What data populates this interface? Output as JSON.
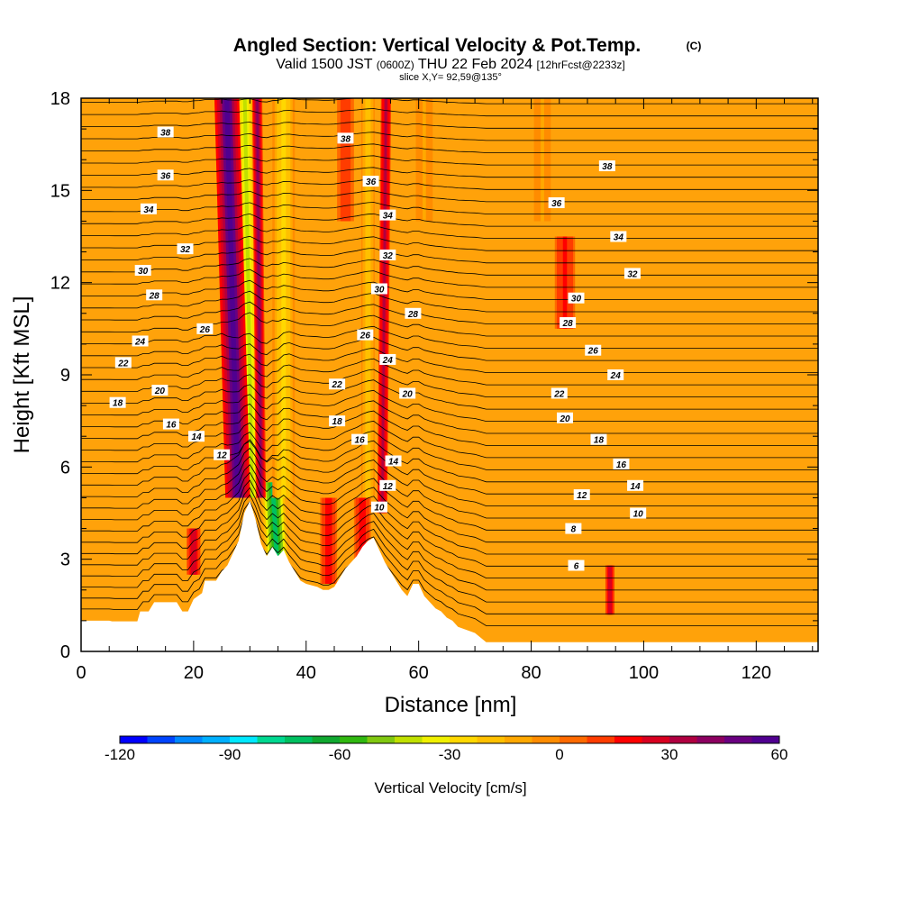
{
  "figure": {
    "title": "Angled Section: Vertical Velocity & Pot.Temp.",
    "title_tag": "(C)",
    "subtitle_a": "Valid 1500 JST",
    "subtitle_b": "(0600Z)",
    "subtitle_c": "THU 22 Feb 2024",
    "subtitle_d": "[12hrFcst@2233z]",
    "slice": "slice X,Y= 92,59@135°"
  },
  "chart_data": {
    "type": "contour-cross-section",
    "xlabel": "Distance [nm]",
    "ylabel": "Height [Kft MSL]",
    "xlim": [
      0,
      131
    ],
    "ylim": [
      0,
      18
    ],
    "x_ticks": [
      0,
      20,
      40,
      60,
      80,
      100,
      120
    ],
    "y_ticks": [
      0,
      3,
      6,
      9,
      12,
      15,
      18
    ],
    "colorbar": {
      "label": "Vertical Velocity [cm/s]",
      "ticks": [
        -120,
        -90,
        -60,
        -30,
        0,
        30,
        60
      ],
      "range": [
        -120,
        60
      ],
      "colors": [
        "#0000ff",
        "#0044ff",
        "#0088ff",
        "#00b0ff",
        "#00e8ff",
        "#00d890",
        "#00c060",
        "#10a830",
        "#30b810",
        "#80c810",
        "#c0e000",
        "#f0f000",
        "#ffd800",
        "#ffc000",
        "#ffa800",
        "#ff8c00",
        "#ff6a00",
        "#ff3c00",
        "#ff0000",
        "#d80020",
        "#b00040",
        "#8c0060",
        "#6a0080",
        "#500090"
      ]
    },
    "terrain": [
      [
        0,
        1.0
      ],
      [
        5,
        1.0
      ],
      [
        5,
        1.0
      ],
      [
        5.5,
        0.98
      ],
      [
        5.5,
        0.98
      ],
      [
        10,
        0.98
      ],
      [
        10,
        0.98
      ],
      [
        10.5,
        1.3
      ],
      [
        12,
        1.3
      ],
      [
        13,
        1.6
      ],
      [
        17,
        1.6
      ],
      [
        18,
        1.3
      ],
      [
        19,
        1.3
      ],
      [
        20,
        1.7
      ],
      [
        21.5,
        1.9
      ],
      [
        22,
        2.3
      ],
      [
        24,
        2.3
      ],
      [
        25,
        2.6
      ],
      [
        26,
        2.8
      ],
      [
        27,
        3.2
      ],
      [
        28,
        3.6
      ],
      [
        29,
        4.5
      ],
      [
        30,
        4.9
      ],
      [
        31,
        4.3
      ],
      [
        32,
        3.5
      ],
      [
        33,
        3.1
      ],
      [
        34,
        3.4
      ],
      [
        35,
        3.1
      ],
      [
        36,
        3.3
      ],
      [
        37,
        2.9
      ],
      [
        38,
        2.6
      ],
      [
        39,
        2.3
      ],
      [
        40,
        2.2
      ],
      [
        42,
        2.1
      ],
      [
        43,
        2.0
      ],
      [
        44,
        2.0
      ],
      [
        45,
        2.1
      ],
      [
        46,
        2.4
      ],
      [
        47,
        2.7
      ],
      [
        48,
        2.9
      ],
      [
        49,
        3.1
      ],
      [
        50,
        3.4
      ],
      [
        51,
        3.6
      ],
      [
        52,
        3.7
      ],
      [
        53,
        3.3
      ],
      [
        54,
        2.9
      ],
      [
        55,
        2.6
      ],
      [
        56,
        2.3
      ],
      [
        57,
        2.0
      ],
      [
        58,
        1.8
      ],
      [
        59,
        2.2
      ],
      [
        60,
        2.2
      ],
      [
        61,
        1.8
      ],
      [
        62,
        1.6
      ],
      [
        63,
        1.4
      ],
      [
        64,
        1.3
      ],
      [
        65,
        1.1
      ],
      [
        66,
        1.0
      ],
      [
        67,
        0.8
      ],
      [
        70,
        0.6
      ],
      [
        72,
        0.3
      ],
      [
        131,
        0.3
      ]
    ],
    "updrafts": [
      {
        "x": 28,
        "z0": 5.0,
        "z1": 18.0,
        "value": 60,
        "width": 2.2,
        "tilt": -0.15
      },
      {
        "x": 32,
        "z0": 5.0,
        "z1": 18.0,
        "value": 40,
        "width": 0.9,
        "tilt": -0.05
      },
      {
        "x": 53.5,
        "z0": 4.5,
        "z1": 18.0,
        "value": 35,
        "width": 0.9,
        "tilt": 0.05
      },
      {
        "x": 20,
        "z0": 2.5,
        "z1": 4.0,
        "value": 30,
        "width": 1.2,
        "tilt": 0
      },
      {
        "x": 94,
        "z0": 1.2,
        "z1": 2.8,
        "value": 30,
        "width": 0.8,
        "tilt": 0
      },
      {
        "x": 86,
        "z0": 10.5,
        "z1": 13.5,
        "value": 18,
        "width": 1.8,
        "tilt": 0
      },
      {
        "x": 47,
        "z0": 14.0,
        "z1": 18.0,
        "value": 15,
        "width": 1.5,
        "tilt": 0
      },
      {
        "x": 44,
        "z0": 2.2,
        "z1": 5.0,
        "value": 20,
        "width": 1.5,
        "tilt": 0
      },
      {
        "x": 50,
        "z0": 2.5,
        "z1": 5.0,
        "value": 20,
        "width": 1.5,
        "tilt": 0
      }
    ],
    "downdrafts": [
      {
        "x": 30.5,
        "z0": 5.0,
        "z1": 18.0,
        "value": -40,
        "width": 1.6,
        "tilt": -0.1
      },
      {
        "x": 34.5,
        "z0": 3.0,
        "z1": 5.5,
        "value": -75,
        "width": 2.0,
        "tilt": -0.3
      },
      {
        "x": 36,
        "z0": 5.0,
        "z1": 18.0,
        "value": -25,
        "width": 2.0,
        "tilt": 0
      },
      {
        "x": 51,
        "z0": 5.0,
        "z1": 18.0,
        "value": -20,
        "width": 1.2,
        "tilt": 0
      },
      {
        "x": 82,
        "z0": 14.0,
        "z1": 18.0,
        "value": -8,
        "width": 1.5,
        "tilt": 0
      },
      {
        "x": 61,
        "z0": 14.0,
        "z1": 18.0,
        "value": -8,
        "width": 1.5,
        "tilt": 0
      }
    ],
    "theta_labels": [
      {
        "t": "38",
        "x": 15,
        "z": 16.9
      },
      {
        "t": "36",
        "x": 15,
        "z": 15.5
      },
      {
        "t": "34",
        "x": 12,
        "z": 14.4
      },
      {
        "t": "32",
        "x": 18.5,
        "z": 13.1
      },
      {
        "t": "30",
        "x": 11,
        "z": 12.4
      },
      {
        "t": "28",
        "x": 13,
        "z": 11.6
      },
      {
        "t": "26",
        "x": 22,
        "z": 10.5
      },
      {
        "t": "24",
        "x": 10.5,
        "z": 10.1
      },
      {
        "t": "22",
        "x": 7.5,
        "z": 9.4
      },
      {
        "t": "20",
        "x": 14,
        "z": 8.5
      },
      {
        "t": "18",
        "x": 6.5,
        "z": 8.1
      },
      {
        "t": "16",
        "x": 16,
        "z": 7.4
      },
      {
        "t": "14",
        "x": 20.5,
        "z": 7.0
      },
      {
        "t": "12",
        "x": 25,
        "z": 6.4
      },
      {
        "t": "38",
        "x": 47,
        "z": 16.7
      },
      {
        "t": "36",
        "x": 51.5,
        "z": 15.3
      },
      {
        "t": "34",
        "x": 54.5,
        "z": 14.2
      },
      {
        "t": "32",
        "x": 54.5,
        "z": 12.9
      },
      {
        "t": "30",
        "x": 53,
        "z": 11.8
      },
      {
        "t": "28",
        "x": 59,
        "z": 11.0
      },
      {
        "t": "26",
        "x": 50.5,
        "z": 10.3
      },
      {
        "t": "24",
        "x": 54.5,
        "z": 9.5
      },
      {
        "t": "22",
        "x": 45.5,
        "z": 8.7
      },
      {
        "t": "20",
        "x": 58,
        "z": 8.4
      },
      {
        "t": "18",
        "x": 45.5,
        "z": 7.5
      },
      {
        "t": "16",
        "x": 49.5,
        "z": 6.9
      },
      {
        "t": "14",
        "x": 55.5,
        "z": 6.2
      },
      {
        "t": "12",
        "x": 54.5,
        "z": 5.4
      },
      {
        "t": "10",
        "x": 53,
        "z": 4.7
      },
      {
        "t": "38",
        "x": 93.5,
        "z": 15.8
      },
      {
        "t": "36",
        "x": 84.5,
        "z": 14.6
      },
      {
        "t": "34",
        "x": 95.5,
        "z": 13.5
      },
      {
        "t": "32",
        "x": 98,
        "z": 12.3
      },
      {
        "t": "30",
        "x": 88,
        "z": 11.5
      },
      {
        "t": "28",
        "x": 86.5,
        "z": 10.7
      },
      {
        "t": "26",
        "x": 91,
        "z": 9.8
      },
      {
        "t": "24",
        "x": 95,
        "z": 9.0
      },
      {
        "t": "22",
        "x": 85,
        "z": 8.4
      },
      {
        "t": "20",
        "x": 86,
        "z": 7.6
      },
      {
        "t": "18",
        "x": 92,
        "z": 6.9
      },
      {
        "t": "16",
        "x": 96,
        "z": 6.1
      },
      {
        "t": "14",
        "x": 98.5,
        "z": 5.4
      },
      {
        "t": "12",
        "x": 89,
        "z": 5.1
      },
      {
        "t": "10",
        "x": 99,
        "z": 4.5
      },
      {
        "t": "8",
        "x": 87.5,
        "z": 4.0
      },
      {
        "t": "6",
        "x": 88,
        "z": 2.8
      }
    ]
  }
}
